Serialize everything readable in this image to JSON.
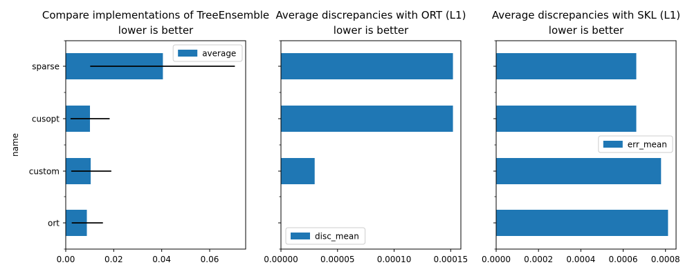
{
  "chart_data": [
    {
      "type": "bar",
      "orientation": "horizontal",
      "title_line1": "Compare implementations of TreeEnsemble",
      "title_line2": "lower is better",
      "ylabel": "name",
      "xlabel": "",
      "categories": [
        "ort",
        "custom",
        "cusopt",
        "sparse"
      ],
      "series": [
        {
          "name": "average",
          "values": [
            0.0088,
            0.0104,
            0.0101,
            0.0405
          ]
        }
      ],
      "error_bars": [
        {
          "low": 0.0025,
          "high": 0.0155
        },
        {
          "low": 0.0023,
          "high": 0.019
        },
        {
          "low": 0.002,
          "high": 0.0183
        },
        {
          "low": 0.0102,
          "high": 0.0705
        }
      ],
      "xlim": [
        0,
        0.075
      ],
      "xticks": [
        "0.00",
        "0.02",
        "0.04",
        "0.06"
      ],
      "xtick_values": [
        0,
        0.02,
        0.04,
        0.06
      ],
      "legend_position": "top-right",
      "color": "#1f77b4"
    },
    {
      "type": "bar",
      "orientation": "horizontal",
      "title_line1": "Average discrepancies with ORT (L1)",
      "title_line2": "lower is better",
      "xlabel": "",
      "categories": [
        "ort",
        "custom",
        "cusopt",
        "sparse"
      ],
      "series": [
        {
          "name": "disc_mean",
          "values": [
            0.0,
            2.98e-05,
            0.000152,
            0.000152
          ]
        }
      ],
      "xlim": [
        0,
        0.000159
      ],
      "xticks": [
        "0.00000",
        "0.00005",
        "0.00010",
        "0.00015"
      ],
      "xtick_values": [
        0,
        5e-05,
        0.0001,
        0.00015
      ],
      "legend_position": "bottom-left",
      "color": "#1f77b4"
    },
    {
      "type": "bar",
      "orientation": "horizontal",
      "title_line1": "Average discrepancies with SKL (L1)",
      "title_line2": "lower is better",
      "xlabel": "",
      "categories": [
        "ort",
        "custom",
        "cusopt",
        "sparse"
      ],
      "series": [
        {
          "name": "err_mean",
          "values": [
            0.000812,
            0.000779,
            0.000662,
            0.000662
          ]
        }
      ],
      "xlim": [
        0,
        0.00085
      ],
      "xticks": [
        "0.0000",
        "0.0002",
        "0.0004",
        "0.0006",
        "0.0008"
      ],
      "xtick_values": [
        0,
        0.0002,
        0.0004,
        0.0006,
        0.0008
      ],
      "legend_position": "center-right",
      "color": "#1f77b4"
    }
  ]
}
